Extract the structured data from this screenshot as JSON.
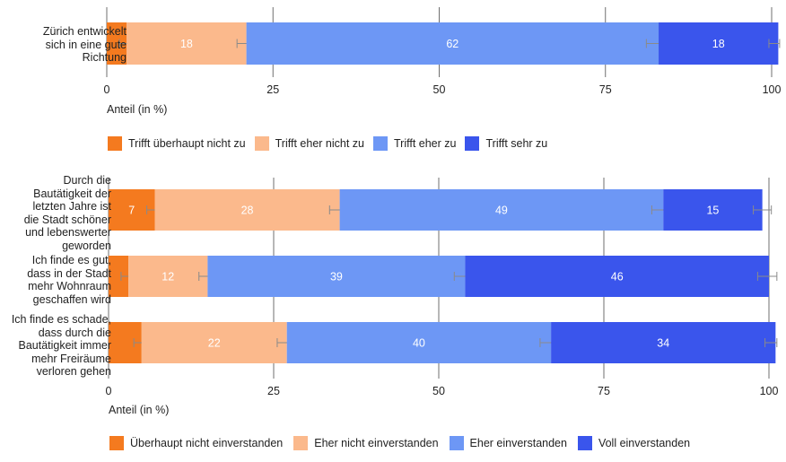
{
  "chart_data": [
    {
      "type": "bar",
      "orientation": "horizontal",
      "stacked": true,
      "categories": [
        "Zürich entwickelt sich in eine gute Richtung"
      ],
      "series": [
        {
          "name": "Trifft überhaupt nicht zu",
          "color": "#f47a1f",
          "values": [
            3
          ]
        },
        {
          "name": "Trifft eher nicht zu",
          "color": "#fbb98c",
          "values": [
            18
          ]
        },
        {
          "name": "Trifft eher zu",
          "color": "#6d97f5",
          "values": [
            62
          ]
        },
        {
          "name": "Trifft sehr zu",
          "color": "#3a55ec",
          "values": [
            18
          ]
        }
      ],
      "labels_shown": [
        [
          false
        ],
        [
          true
        ],
        [
          true
        ],
        [
          true
        ]
      ],
      "xlabel": "Anteil (in %)",
      "xlim": [
        0,
        100
      ],
      "xticks": [
        0,
        25,
        50,
        75,
        100
      ],
      "error_bars": true,
      "legend": "bottom"
    },
    {
      "type": "bar",
      "orientation": "horizontal",
      "stacked": true,
      "categories": [
        "Durch die Bautätigkeit der letzten Jahre ist die Stadt schöner und lebenswerter geworden",
        "Ich finde es gut, dass in der Stadt mehr Wohnraum geschaffen wird",
        "Ich finde es schade, dass durch die Bautätigkeit immer mehr Freiräume verloren gehen"
      ],
      "series": [
        {
          "name": "Überhaupt nicht einverstanden",
          "color": "#f47a1f",
          "values": [
            7,
            3,
            5
          ]
        },
        {
          "name": "Eher nicht einverstanden",
          "color": "#fbb98c",
          "values": [
            28,
            12,
            22
          ]
        },
        {
          "name": "Eher einverstanden",
          "color": "#6d97f5",
          "values": [
            49,
            39,
            40
          ]
        },
        {
          "name": "Voll einverstanden",
          "color": "#3a55ec",
          "values": [
            15,
            46,
            34
          ]
        }
      ],
      "labels_shown": [
        [
          true,
          false,
          false
        ],
        [
          true,
          true,
          true
        ],
        [
          true,
          true,
          true
        ],
        [
          true,
          true,
          true
        ]
      ],
      "xlabel": "Anteil (in %)",
      "xlim": [
        0,
        100
      ],
      "xticks": [
        0,
        25,
        50,
        75,
        100
      ],
      "error_bars": true,
      "legend": "bottom"
    }
  ],
  "text": {
    "top_category_lines": [
      "Zürich entwickelt",
      "sich in eine gute",
      "Richtung"
    ],
    "bottom_category_lines": [
      [
        "Durch die",
        "Bautätigkeit der",
        "letzten Jahre ist",
        "die Stadt schöner",
        "und lebenswerter",
        "geworden"
      ],
      [
        "Ich finde es gut,",
        "dass in der Stadt",
        "mehr Wohnraum",
        "geschaffen wird"
      ],
      [
        "Ich finde es schade,",
        "dass durch die",
        "Bautätigkeit immer",
        "mehr Freiräume",
        "verloren gehen"
      ]
    ]
  }
}
